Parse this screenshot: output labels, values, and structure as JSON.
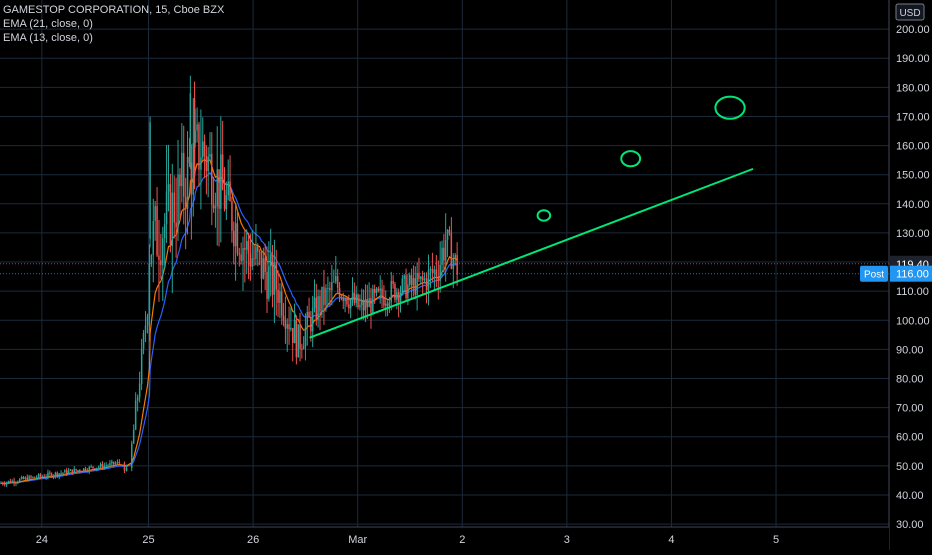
{
  "legend": {
    "title": "GAMESTOP CORPORATION, 15, Cboe BZX",
    "ema1": "EMA (21, close, 0)",
    "ema2": "EMA (13, close, 0)"
  },
  "colors": {
    "background": "#000000",
    "grid": "#1c2a3c",
    "axis_text": "#d1d4dc",
    "up": "#26a69a",
    "down": "#ef5350",
    "ema21": "#2962ff",
    "ema13": "#f57c00",
    "drawing": "#00e676",
    "label_bg": "#2196f3"
  },
  "chart_data": {
    "type": "candlestick",
    "symbol": "GAMESTOP CORPORATION",
    "interval": "15",
    "exchange": "Cboe BZX",
    "y_axis": {
      "currency": "USD",
      "ticks": [
        "30.00",
        "40.00",
        "50.00",
        "60.00",
        "70.00",
        "80.00",
        "90.00",
        "100.00",
        "110.00",
        "120.00",
        "130.00",
        "140.00",
        "150.00",
        "160.00",
        "170.00",
        "180.00",
        "190.00",
        "200.00"
      ],
      "range": [
        29,
        210
      ]
    },
    "x_axis": {
      "ticks": [
        {
          "label": "24",
          "x": 0.4
        },
        {
          "label": "25",
          "x": 1.42
        },
        {
          "label": "26",
          "x": 2.42
        },
        {
          "label": "Mar",
          "x": 3.42
        },
        {
          "label": "2",
          "x": 4.42
        },
        {
          "label": "3",
          "x": 5.42
        },
        {
          "label": "4",
          "x": 6.42
        },
        {
          "label": "5",
          "x": 7.42
        }
      ],
      "range": [
        0,
        8.5
      ]
    },
    "price_labels": [
      {
        "value": 119.4,
        "text": "119.40",
        "kind": "last"
      },
      {
        "value": 116.0,
        "text": "116.00",
        "tag": "Post",
        "kind": "post"
      }
    ],
    "segments": [
      {
        "x0": 0.0,
        "x1": 1.15,
        "y0": 44,
        "y1": 51,
        "vol": 0.8
      },
      {
        "x0": 1.18,
        "x1": 1.22,
        "y0": 51,
        "y1": 48,
        "vol": 1.2
      },
      {
        "x0": 1.25,
        "x1": 1.42,
        "y0": 50,
        "y1": 105,
        "vol": 4
      },
      {
        "x0": 1.42,
        "x1": 1.62,
        "y0": 125,
        "y1": 135,
        "vol": 12
      },
      {
        "x0": 1.62,
        "x1": 1.93,
        "y0": 135,
        "y1": 160,
        "vol": 12
      },
      {
        "x0": 1.93,
        "x1": 2.12,
        "y0": 160,
        "y1": 145,
        "vol": 11
      },
      {
        "x0": 2.12,
        "x1": 2.35,
        "y0": 145,
        "y1": 125,
        "vol": 9
      },
      {
        "x0": 2.35,
        "x1": 2.65,
        "y0": 125,
        "y1": 112,
        "vol": 8
      },
      {
        "x0": 2.65,
        "x1": 2.86,
        "y0": 112,
        "y1": 92,
        "vol": 6
      },
      {
        "x0": 2.86,
        "x1": 3.05,
        "y0": 92,
        "y1": 105,
        "vol": 5
      },
      {
        "x0": 3.05,
        "x1": 3.22,
        "y0": 105,
        "y1": 112,
        "vol": 5
      },
      {
        "x0": 3.22,
        "x1": 3.45,
        "y0": 112,
        "y1": 104,
        "vol": 4
      },
      {
        "x0": 3.45,
        "x1": 3.75,
        "y0": 104,
        "y1": 110,
        "vol": 4
      },
      {
        "x0": 3.75,
        "x1": 4.05,
        "y0": 110,
        "y1": 113,
        "vol": 4
      },
      {
        "x0": 4.05,
        "x1": 4.2,
        "y0": 113,
        "y1": 118,
        "vol": 5
      },
      {
        "x0": 4.2,
        "x1": 4.27,
        "y0": 118,
        "y1": 128,
        "vol": 7
      },
      {
        "x0": 4.27,
        "x1": 4.38,
        "y0": 128,
        "y1": 118,
        "vol": 5
      }
    ],
    "candle_spacing": 0.018,
    "seed": 7,
    "series": [
      {
        "name": "EMA (21, close, 0)",
        "period": 21
      },
      {
        "name": "EMA (13, close, 0)",
        "period": 13
      }
    ],
    "annotations": {
      "trendline": {
        "x1": 2.96,
        "y1": 94,
        "x2": 7.2,
        "y2": 152
      },
      "circles": [
        {
          "x": 5.2,
          "y": 136,
          "rx": 0.06,
          "ry": 1.8
        },
        {
          "x": 6.03,
          "y": 155.5,
          "rx": 0.09,
          "ry": 2.6
        },
        {
          "x": 6.98,
          "y": 173,
          "rx": 0.14,
          "ry": 3.8
        }
      ]
    }
  }
}
